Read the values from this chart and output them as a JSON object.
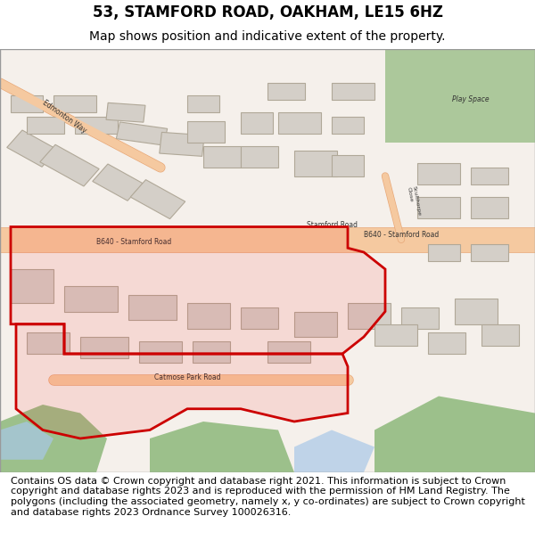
{
  "title": "53, STAMFORD ROAD, OAKHAM, LE15 6HZ",
  "subtitle": "Map shows position and indicative extent of the property.",
  "copyright_text": "Contains OS data © Crown copyright and database right 2021. This information is subject to Crown copyright and database rights 2023 and is reproduced with the permission of HM Land Registry. The polygons (including the associated geometry, namely x, y co-ordinates) are subject to Crown copyright and database rights 2023 Ordnance Survey 100026316.",
  "background_color": "#f0ede8",
  "road_color": "#f5c9a0",
  "road_outline_color": "#e8a878",
  "building_color": "#d4cfc8",
  "building_outline_color": "#b0a898",
  "green_color": "#8db87a",
  "water_color": "#a8c8e8",
  "plot_outline_color": "#cc0000",
  "plot_fill_color": "#ff000015",
  "title_fontsize": 12,
  "subtitle_fontsize": 10,
  "copyright_fontsize": 8,
  "map_bg": "#f5f0eb",
  "title_area_bg": "#ffffff",
  "copyright_area_bg": "#ffffff"
}
